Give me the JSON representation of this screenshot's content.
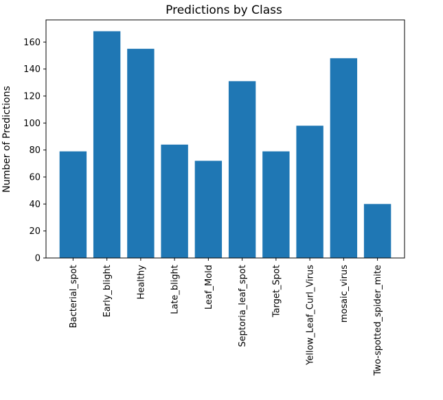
{
  "chart_data": {
    "type": "bar",
    "title": "Predictions by Class",
    "xlabel": "",
    "ylabel": "Number of Predictions",
    "categories": [
      "Bacterial_spot",
      "Early_blight",
      "Healthy",
      "Late_blight",
      "Leaf_Mold",
      "Septoria_leaf_spot",
      "Target_Spot",
      "Yellow_Leaf_Curl_Virus",
      "mosaic_virus",
      "Two-spotted_spider_mite"
    ],
    "values": [
      79,
      168,
      155,
      84,
      72,
      131,
      79,
      98,
      148,
      40
    ],
    "ylim": [
      0,
      176.4
    ],
    "yticks": [
      0,
      20,
      40,
      60,
      80,
      100,
      120,
      140,
      160
    ],
    "bar_color": "#1f77b4",
    "grid": false,
    "legend": "none"
  }
}
